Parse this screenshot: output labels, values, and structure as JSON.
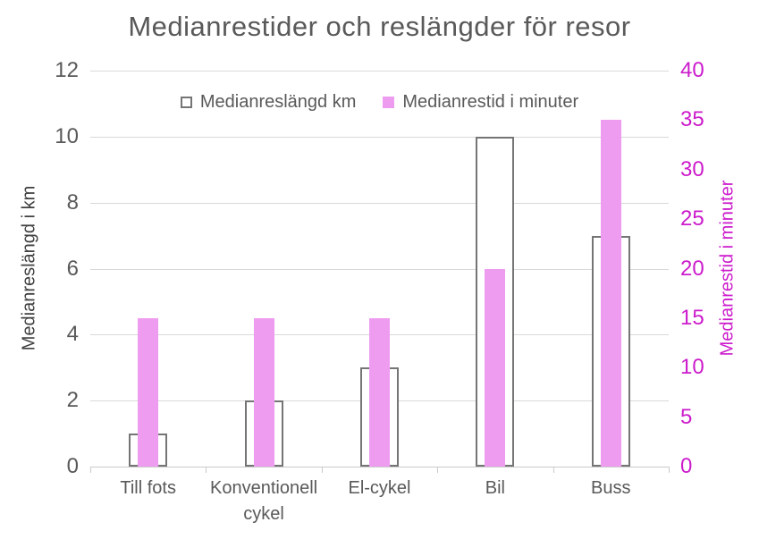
{
  "colors": {
    "title_text": "#595959",
    "axis_text": "#595959",
    "gridline": "#D9D9D9",
    "bar_outline": "#757575",
    "bar_pink": "#EE9CF0",
    "magenta_axis": "#CC1BCC"
  },
  "chart_data": {
    "type": "bar",
    "title": "Medianrestider och reslängder för resor",
    "categories": [
      "Till fots",
      "Konventionell cykel",
      "El-cykel",
      "Bil",
      "Buss"
    ],
    "series": [
      {
        "name": "Medianreslängd km",
        "axis": "left",
        "values": [
          1,
          2,
          3,
          10,
          7
        ],
        "fill": "#FFFFFF",
        "border_color": "#757575"
      },
      {
        "name": "Medianrestid i minuter",
        "axis": "right",
        "values": [
          15,
          15,
          15,
          20,
          35
        ],
        "fill": "#EE9CF0"
      }
    ],
    "left_axis": {
      "label": "Medianreslängd i km",
      "min": 0,
      "max": 12,
      "step": 2,
      "tick_labels": [
        "0",
        "2",
        "4",
        "6",
        "8",
        "10",
        "12"
      ],
      "color": "#595959"
    },
    "right_axis": {
      "label": "Medianrestid i minuter",
      "min": 0,
      "max": 40,
      "step": 5,
      "tick_labels": [
        "0",
        "5",
        "10",
        "15",
        "20",
        "25",
        "30",
        "35",
        "40"
      ],
      "color": "#CC1BCC"
    },
    "grid": true,
    "legend_position": "top"
  }
}
